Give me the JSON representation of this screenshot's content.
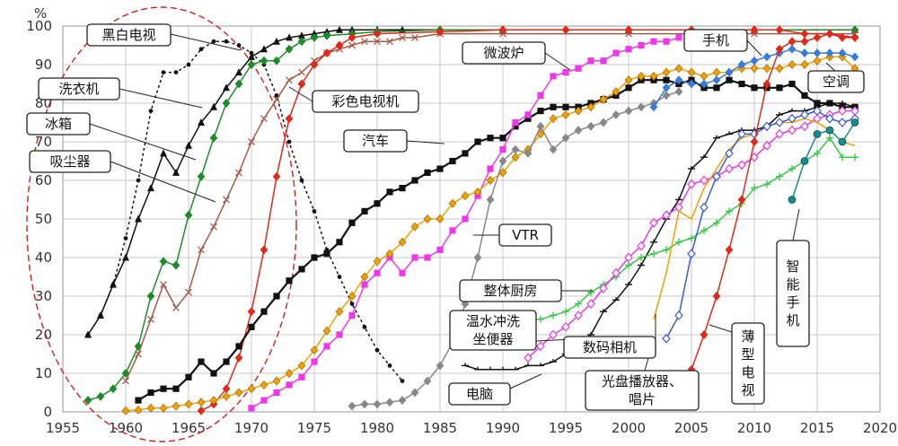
{
  "chart_data": {
    "type": "line",
    "title": "",
    "xlabel": "",
    "ylabel": "%",
    "xlim": [
      1955,
      2020
    ],
    "ylim": [
      0,
      100
    ],
    "x_ticks": [
      1955,
      1960,
      1965,
      1970,
      1975,
      1980,
      1985,
      1990,
      1995,
      2000,
      2005,
      2010,
      2015,
      2020
    ],
    "y_ticks": [
      0,
      10,
      20,
      30,
      40,
      50,
      60,
      70,
      80,
      90,
      100
    ],
    "grid": true,
    "series": [
      {
        "name": "黑白电视",
        "color": "#111111",
        "marker": "dot",
        "dash": true,
        "x": [
          1957,
          1958,
          1959,
          1960,
          1961,
          1962,
          1963,
          1964,
          1965,
          1966,
          1967,
          1968,
          1969,
          1970,
          1971,
          1972,
          1973,
          1974,
          1975,
          1976,
          1977,
          1978,
          1979,
          1980,
          1981,
          1982
        ],
        "y": [
          20,
          25,
          33,
          45,
          60,
          78,
          88,
          88,
          90,
          94,
          96,
          96,
          95,
          93,
          90,
          82,
          70,
          60,
          52,
          42,
          35,
          28,
          22,
          16,
          12,
          8
        ]
      },
      {
        "name": "洗衣机",
        "color": "#111111",
        "marker": "triangle",
        "dash": false,
        "x": [
          1957,
          1958,
          1959,
          1960,
          1961,
          1962,
          1963,
          1964,
          1965,
          1966,
          1967,
          1968,
          1969,
          1970,
          1971,
          1972,
          1973,
          1974,
          1975,
          1976,
          1977,
          1978,
          1980,
          1982,
          1985,
          1990,
          2000,
          2010,
          2018
        ],
        "y": [
          20,
          25,
          33,
          40,
          50,
          58,
          67,
          62,
          69,
          75,
          79,
          84,
          88,
          92,
          94,
          96,
          97,
          97.5,
          98,
          98.5,
          99,
          99,
          99,
          99,
          99,
          99,
          99,
          99,
          99
        ]
      },
      {
        "name": "冰箱",
        "color": "#1f8a2a",
        "marker": "diamond",
        "dash": false,
        "x": [
          1957,
          1958,
          1959,
          1960,
          1961,
          1962,
          1963,
          1964,
          1965,
          1966,
          1967,
          1968,
          1969,
          1970,
          1971,
          1972,
          1973,
          1974,
          1975,
          1976,
          1978,
          1980,
          1985,
          1990,
          2000,
          2010,
          2018
        ],
        "y": [
          3,
          4,
          6,
          10,
          17,
          30,
          39,
          38,
          51,
          61,
          71,
          80,
          85,
          90,
          91,
          91,
          94,
          96,
          97,
          97.5,
          98,
          98.5,
          99,
          99,
          99,
          99,
          99
        ]
      },
      {
        "name": "吸尘器",
        "color": "#a45a4a",
        "marker": "x",
        "dash": false,
        "x": [
          1960,
          1961,
          1962,
          1963,
          1964,
          1965,
          1966,
          1967,
          1968,
          1969,
          1970,
          1971,
          1972,
          1973,
          1974,
          1975,
          1976,
          1977,
          1978,
          1979,
          1980,
          1981,
          1982,
          1983,
          1985,
          1990,
          2000,
          2010,
          2018
        ],
        "y": [
          8,
          15,
          24,
          33,
          27,
          31,
          42,
          48,
          55,
          62,
          70,
          76,
          81,
          86,
          88,
          91,
          93,
          94,
          95,
          96,
          96,
          96,
          97,
          97,
          98,
          98,
          98,
          98,
          98
        ]
      },
      {
        "name": "彩色电视机",
        "color": "#dd2a1b",
        "marker": "diamond",
        "dash": false,
        "x": [
          1966,
          1967,
          1968,
          1969,
          1970,
          1971,
          1972,
          1973,
          1974,
          1975,
          1976,
          1977,
          1978,
          1980,
          1985,
          1990,
          1995,
          2000,
          2005,
          2010,
          2012,
          2014,
          2016,
          2018
        ],
        "y": [
          0.3,
          2,
          6,
          14,
          26,
          42,
          61,
          76,
          85,
          90,
          93,
          95,
          97,
          98,
          98.5,
          99,
          99,
          99,
          99,
          99,
          99,
          98,
          98,
          97
        ]
      },
      {
        "name": "汽车",
        "color": "#111111",
        "marker": "square",
        "dash": false,
        "x": [
          1961,
          1962,
          1963,
          1964,
          1965,
          1966,
          1967,
          1968,
          1969,
          1970,
          1971,
          1972,
          1973,
          1974,
          1975,
          1976,
          1977,
          1978,
          1979,
          1980,
          1981,
          1982,
          1983,
          1984,
          1985,
          1986,
          1987,
          1988,
          1989,
          1990,
          1991,
          1992,
          1993,
          1994,
          1995,
          1996,
          1997,
          1998,
          1999,
          2000,
          2001,
          2002,
          2003,
          2004,
          2005,
          2006,
          2007,
          2008,
          2009,
          2010,
          2011,
          2012,
          2013,
          2014,
          2015,
          2016,
          2017,
          2018
        ],
        "y": [
          3,
          5,
          6,
          6,
          9,
          13,
          10,
          13,
          17,
          22,
          26,
          30,
          34,
          37,
          40,
          41,
          44,
          49,
          52,
          54,
          57,
          58,
          60,
          62,
          63,
          65,
          67,
          70,
          71,
          71,
          74,
          76,
          78,
          79,
          79,
          79,
          80,
          81,
          82,
          84,
          86,
          86,
          86,
          85,
          86,
          84,
          84,
          86,
          85,
          84,
          84,
          84,
          85,
          82,
          80,
          80,
          79,
          79
        ]
      },
      {
        "name": "微波炉",
        "color": "#ee38e8",
        "marker": "square",
        "dash": false,
        "x": [
          1970,
          1971,
          1972,
          1973,
          1974,
          1975,
          1976,
          1977,
          1978,
          1979,
          1980,
          1981,
          1982,
          1983,
          1984,
          1985,
          1986,
          1987,
          1988,
          1989,
          1990,
          1991,
          1992,
          1993,
          1994,
          1995,
          1996,
          1997,
          1998,
          1999,
          2000,
          2001,
          2002,
          2003,
          2004
        ],
        "y": [
          1,
          3,
          5,
          7,
          9,
          13,
          17,
          20,
          25,
          33,
          36,
          40,
          36,
          40,
          40,
          42,
          47,
          50,
          56,
          63,
          68,
          75,
          77,
          82,
          87,
          88,
          89,
          91,
          91,
          93,
          94,
          95,
          96,
          96,
          97
        ]
      },
      {
        "name": "空调",
        "color": "#f0a000",
        "marker": "diamond",
        "dash": false,
        "x": [
          1960,
          1961,
          1962,
          1963,
          1964,
          1965,
          1966,
          1967,
          1968,
          1969,
          1970,
          1971,
          1972,
          1973,
          1974,
          1975,
          1976,
          1977,
          1978,
          1979,
          1980,
          1981,
          1982,
          1983,
          1984,
          1985,
          1986,
          1987,
          1988,
          1989,
          1990,
          1991,
          1992,
          1993,
          1994,
          1995,
          1996,
          1997,
          1998,
          1999,
          2000,
          2001,
          2002,
          2003,
          2004,
          2005,
          2006,
          2007,
          2008,
          2009,
          2010,
          2011,
          2012,
          2013,
          2014,
          2015,
          2016,
          2017,
          2018
        ],
        "y": [
          0.3,
          0.5,
          1,
          1,
          1.5,
          2,
          2.5,
          3,
          4,
          5,
          6,
          7,
          8,
          10,
          12,
          16,
          21,
          26,
          30,
          35,
          39,
          41,
          44,
          48,
          50,
          50,
          54,
          56,
          57,
          60,
          62,
          66,
          68,
          72,
          76,
          77,
          78,
          79,
          81,
          83,
          86,
          87,
          87,
          88,
          89,
          88,
          87,
          88,
          88,
          89,
          89,
          89,
          89,
          90,
          90,
          91,
          92,
          92,
          89
        ]
      },
      {
        "name": "VTR",
        "color": "#888888",
        "marker": "diamond",
        "dash": false,
        "x": [
          1978,
          1979,
          1980,
          1981,
          1982,
          1983,
          1984,
          1985,
          1986,
          1987,
          1988,
          1989,
          1990,
          1991,
          1992,
          1993,
          1994,
          1995,
          1996,
          1997,
          1998,
          1999,
          2000,
          2001,
          2002,
          2003,
          2004
        ],
        "y": [
          1.5,
          2,
          2,
          2.5,
          3,
          5,
          8,
          12,
          18,
          28,
          40,
          55,
          65,
          68,
          67,
          74,
          68,
          71,
          73,
          74,
          75,
          77,
          78,
          79,
          80,
          82,
          83
        ]
      },
      {
        "name": "电脑",
        "color": "#111111",
        "marker": "dash",
        "dash": false,
        "x": [
          1987,
          1988,
          1989,
          1990,
          1991,
          1992,
          1993,
          1994,
          1995,
          1996,
          1997,
          1998,
          1999,
          2000,
          2001,
          2002,
          2003,
          2004,
          2005,
          2006,
          2007,
          2008,
          2009,
          2010,
          2011,
          2012,
          2013,
          2014,
          2015,
          2016,
          2017,
          2018
        ],
        "y": [
          12,
          11,
          11,
          11,
          11,
          12,
          12,
          13,
          15,
          17,
          20,
          26,
          29,
          33,
          38,
          44,
          50,
          55,
          63,
          66,
          71,
          72,
          73,
          73,
          74,
          77,
          78,
          78,
          79,
          80,
          80,
          79
        ]
      },
      {
        "name": "手机",
        "color": "#3a7bd5",
        "marker": "diamond",
        "dash": false,
        "x": [
          2002,
          2003,
          2004,
          2005,
          2006,
          2007,
          2008,
          2009,
          2010,
          2011,
          2012,
          2013,
          2014,
          2015,
          2016,
          2017,
          2018
        ],
        "y": [
          79,
          84,
          86,
          85,
          85,
          86,
          88,
          90,
          91,
          92,
          93,
          94,
          93,
          93,
          93,
          93,
          92
        ]
      },
      {
        "name": "整体厨房",
        "color": "#3cc84a",
        "marker": "plus",
        "dash": false,
        "x": [
          1992,
          1993,
          1994,
          1995,
          1996,
          1997,
          1998,
          1999,
          2000,
          2001,
          2002,
          2003,
          2004,
          2005,
          2006,
          2007,
          2008,
          2009,
          2010,
          2011,
          2012,
          2013,
          2014,
          2015,
          2016,
          2017,
          2018
        ],
        "y": [
          24,
          24,
          25,
          26,
          28,
          31,
          33,
          35,
          38,
          40,
          41,
          42,
          44,
          45,
          47,
          49,
          52,
          54,
          58,
          59,
          61,
          63,
          65,
          67,
          71,
          66,
          66
        ]
      },
      {
        "name": "温水冲洗坐便器",
        "color": "#ee38e8",
        "marker": "diamond-open",
        "dash": false,
        "x": [
          1992,
          1993,
          1994,
          1995,
          1996,
          1997,
          1998,
          1999,
          2000,
          2001,
          2002,
          2003,
          2004,
          2005,
          2006,
          2007,
          2008,
          2009,
          2010,
          2011,
          2012,
          2013,
          2014,
          2015,
          2016,
          2017,
          2018
        ],
        "y": [
          14,
          17,
          20,
          22,
          25,
          28,
          32,
          36,
          40,
          43,
          49,
          51,
          53,
          59,
          60,
          61,
          63,
          64,
          66,
          69,
          72,
          73,
          74,
          76,
          77,
          78,
          78
        ]
      },
      {
        "name": "数码相机",
        "color": "#f0a000",
        "marker": "none",
        "dash": false,
        "x": [
          2002,
          2003,
          2004,
          2005,
          2006,
          2007,
          2008,
          2009,
          2010,
          2011,
          2012,
          2013,
          2014,
          2015,
          2016,
          2017,
          2018
        ],
        "y": [
          24,
          36,
          52,
          50,
          58,
          63,
          68,
          71,
          72,
          74,
          75,
          75,
          76,
          75,
          73,
          70,
          69
        ]
      },
      {
        "name": "光盘播放器、唱片",
        "color": "#3a5bd5",
        "marker": "diamond-open",
        "dash": false,
        "x": [
          2003,
          2004,
          2005,
          2006,
          2007,
          2008,
          2009,
          2010,
          2011,
          2012,
          2013,
          2014,
          2015,
          2016,
          2017,
          2018
        ],
        "y": [
          19,
          25,
          41,
          53,
          61,
          67,
          72,
          72,
          74,
          75,
          76,
          77,
          78,
          76,
          75,
          76
        ]
      },
      {
        "name": "薄型电视",
        "color": "#dd2a1b",
        "marker": "diamond",
        "dash": false,
        "x": [
          2005,
          2006,
          2007,
          2008,
          2009,
          2010,
          2011,
          2012,
          2013,
          2014,
          2015,
          2016,
          2017,
          2018
        ],
        "y": [
          11,
          20,
          30,
          42,
          55,
          70,
          85,
          94,
          96,
          96,
          97,
          98,
          97,
          97
        ]
      },
      {
        "name": "智能手机",
        "color": "#1a8a8a",
        "marker": "circle",
        "dash": false,
        "x": [
          2013,
          2014,
          2015,
          2016,
          2017,
          2018
        ],
        "y": [
          55,
          65,
          72,
          73,
          70,
          75
        ]
      }
    ],
    "annotations": [
      {
        "name": "黑白电视",
        "label": "黑白电视"
      },
      {
        "name": "洗衣机",
        "label": "洗衣机"
      },
      {
        "name": "冰箱",
        "label": "冰箱"
      },
      {
        "name": "吸尘器",
        "label": "吸尘器"
      },
      {
        "name": "彩色电视机",
        "label": "彩色电视机"
      },
      {
        "name": "汽车",
        "label": "汽车"
      },
      {
        "name": "微波炉",
        "label": "微波炉"
      },
      {
        "name": "手机",
        "label": "手机"
      },
      {
        "name": "空调",
        "label": "空调"
      },
      {
        "name": "VTR",
        "label": "VTR"
      },
      {
        "name": "整体厨房",
        "label": "整体厨房"
      },
      {
        "name": "温水冲洗坐便器",
        "label": "温水冲洗\n坐便器"
      },
      {
        "name": "数码相机",
        "label": "数码相机"
      },
      {
        "name": "电脑",
        "label": "电脑"
      },
      {
        "name": "光盘播放器、唱片",
        "label": "光盘播放器、\n唱片"
      },
      {
        "name": "薄型电视",
        "label": "薄\n型\n电\n视"
      },
      {
        "name": "智能手机",
        "label": "智\n能\n手\n机"
      }
    ]
  }
}
